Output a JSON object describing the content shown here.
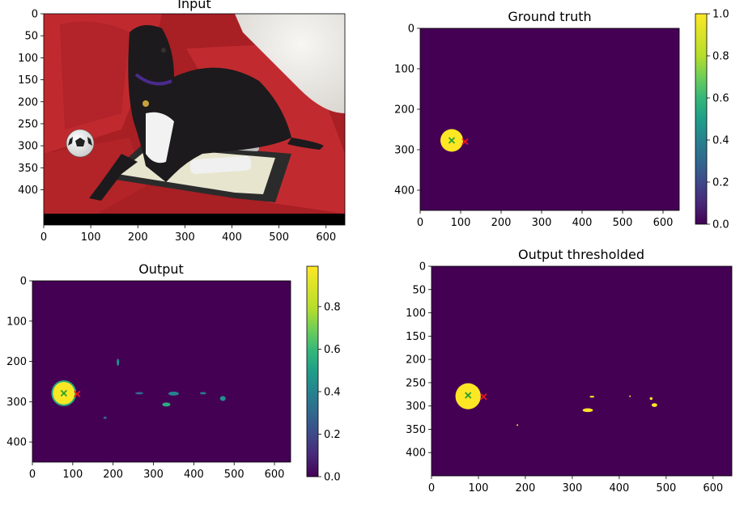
{
  "colors": {
    "viridis_dark": "#440154",
    "viridis_yellow": "#fde725",
    "marker_green": "#2ca02c",
    "marker_red": "#e8171f",
    "sofa_red": "#b8262b",
    "dog_black": "#1c1a1d"
  },
  "chart_data": [
    {
      "id": "input",
      "type": "image",
      "title": "Input",
      "content": "photo: black greyhound lying on red sofa with a toy soccer ball",
      "xlim": [
        0,
        640
      ],
      "ylim": [
        480,
        0
      ],
      "x_ticks": [
        "0",
        "100",
        "200",
        "300",
        "400",
        "500",
        "600"
      ],
      "y_ticks": [
        "0",
        "50",
        "100",
        "150",
        "200",
        "250",
        "300",
        "350",
        "400"
      ]
    },
    {
      "id": "ground_truth",
      "type": "heatmap",
      "title": "Ground truth",
      "colormap": "viridis",
      "xlim": [
        0,
        640
      ],
      "ylim": [
        450,
        0
      ],
      "x_ticks": [
        "0",
        "100",
        "200",
        "300",
        "400",
        "500",
        "600"
      ],
      "y_ticks": [
        "0",
        "100",
        "200",
        "300",
        "400"
      ],
      "colorbar": {
        "range": [
          0,
          1
        ],
        "ticks": [
          "0.0",
          "0.2",
          "0.4",
          "0.6",
          "0.8",
          "1.0"
        ]
      },
      "blobs": [
        {
          "cx": 78,
          "cy": 277,
          "rx": 28,
          "ry": 28,
          "value": 1.0
        }
      ],
      "markers": [
        {
          "x": 78,
          "y": 277,
          "color": "#2ca02c",
          "symbol": "x"
        },
        {
          "x": 111,
          "y": 280,
          "color": "#e8171f",
          "symbol": "x"
        }
      ]
    },
    {
      "id": "output",
      "type": "heatmap",
      "title": "Output",
      "colormap": "viridis",
      "xlim": [
        0,
        640
      ],
      "ylim": [
        450,
        0
      ],
      "x_ticks": [
        "0",
        "100",
        "200",
        "300",
        "400",
        "500",
        "600"
      ],
      "y_ticks": [
        "0",
        "100",
        "200",
        "300",
        "400"
      ],
      "colorbar": {
        "range": [
          0,
          0.99
        ],
        "ticks": [
          "0.0",
          "0.2",
          "0.4",
          "0.6",
          "0.8"
        ]
      },
      "blobs": [
        {
          "cx": 78,
          "cy": 279,
          "rx": 27,
          "ry": 28,
          "value": 0.98
        },
        {
          "cx": 212,
          "cy": 202,
          "rx": 3,
          "ry": 9,
          "value": 0.45
        },
        {
          "cx": 265,
          "cy": 279,
          "rx": 10,
          "ry": 3,
          "value": 0.3
        },
        {
          "cx": 332,
          "cy": 307,
          "rx": 10,
          "ry": 5,
          "value": 0.55
        },
        {
          "cx": 350,
          "cy": 280,
          "rx": 13,
          "ry": 5,
          "value": 0.4
        },
        {
          "cx": 423,
          "cy": 279,
          "rx": 8,
          "ry": 3,
          "value": 0.35
        },
        {
          "cx": 472,
          "cy": 292,
          "rx": 7,
          "ry": 6,
          "value": 0.45
        },
        {
          "cx": 180,
          "cy": 340,
          "rx": 4,
          "ry": 3,
          "value": 0.3
        }
      ],
      "markers": [
        {
          "x": 78,
          "y": 279,
          "color": "#2ca02c",
          "symbol": "x"
        },
        {
          "x": 111,
          "y": 281,
          "color": "#e8171f",
          "symbol": "x"
        }
      ]
    },
    {
      "id": "output_thresholded",
      "type": "heatmap",
      "title": "Output thresholded",
      "colormap": "viridis",
      "xlim": [
        0,
        640
      ],
      "ylim": [
        450,
        0
      ],
      "x_ticks": [
        "0",
        "100",
        "200",
        "300",
        "400",
        "500",
        "600"
      ],
      "y_ticks": [
        "0",
        "50",
        "100",
        "150",
        "200",
        "250",
        "300",
        "350",
        "400"
      ],
      "blobs": [
        {
          "cx": 78,
          "cy": 279,
          "rx": 27,
          "ry": 28,
          "value": 1
        },
        {
          "cx": 333,
          "cy": 309,
          "rx": 11,
          "ry": 4,
          "value": 1
        },
        {
          "cx": 342,
          "cy": 280,
          "rx": 5,
          "ry": 2,
          "value": 1
        },
        {
          "cx": 475,
          "cy": 298,
          "rx": 6,
          "ry": 4,
          "value": 1
        },
        {
          "cx": 468,
          "cy": 284,
          "rx": 3,
          "ry": 3,
          "value": 1
        },
        {
          "cx": 423,
          "cy": 279,
          "rx": 1,
          "ry": 1,
          "value": 1
        },
        {
          "cx": 183,
          "cy": 341,
          "rx": 1,
          "ry": 1,
          "value": 1
        }
      ],
      "markers": [
        {
          "x": 78,
          "y": 277,
          "color": "#2ca02c",
          "symbol": "x"
        },
        {
          "x": 111,
          "y": 280,
          "color": "#e8171f",
          "symbol": "x"
        }
      ]
    }
  ]
}
